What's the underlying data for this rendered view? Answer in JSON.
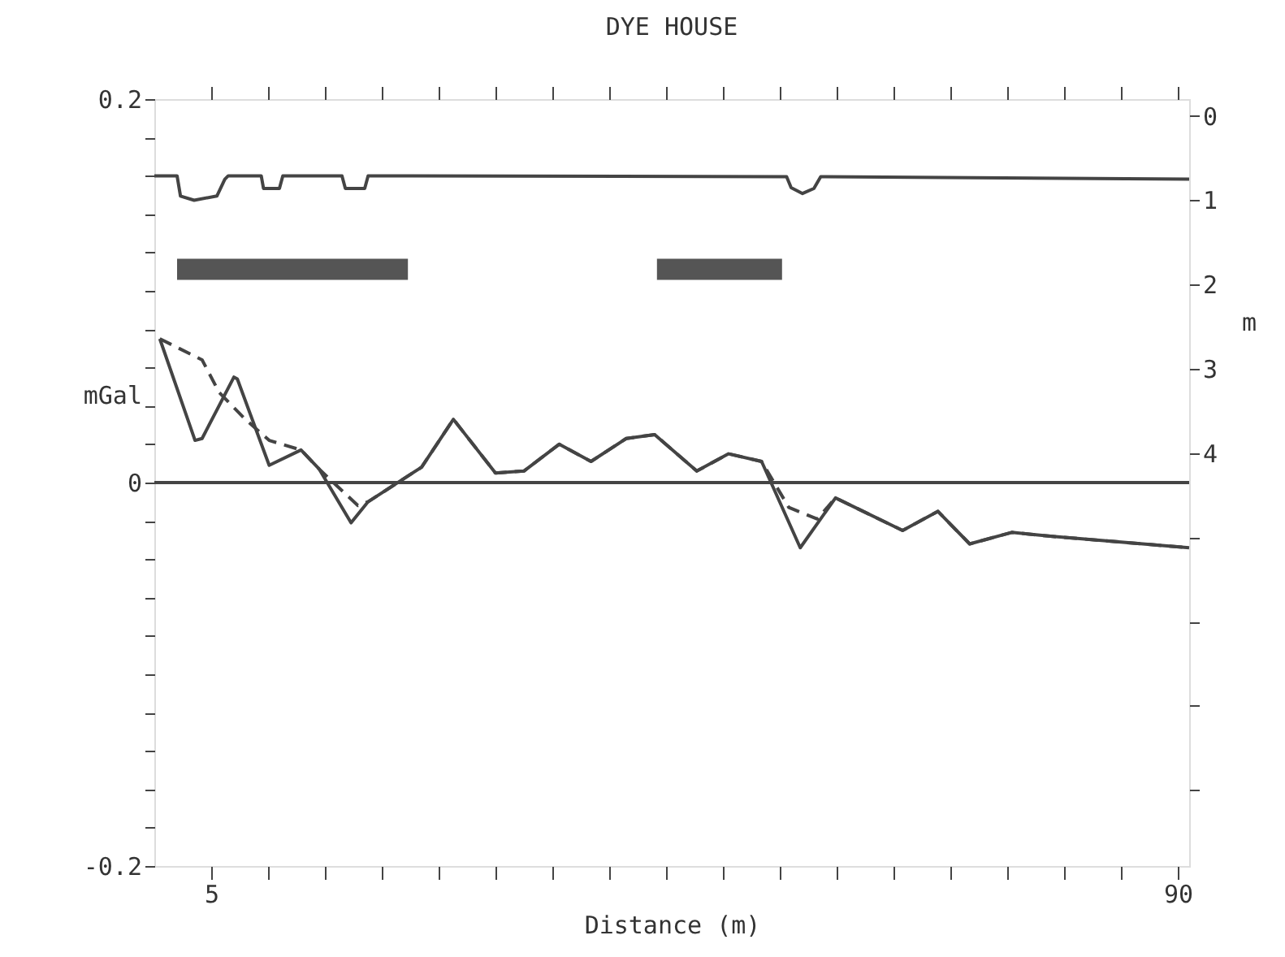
{
  "chart_data": {
    "type": "line",
    "title": "DYE HOUSE",
    "xlabel": "Distance (m)",
    "ylabel": "mGal",
    "y2label": "m",
    "xlim": [
      0,
      91
    ],
    "ylim": [
      -0.2,
      0.2
    ],
    "y2lim": [
      8.9,
      -0.2
    ],
    "xticks": [
      5,
      {
        "value": 10,
        "label": null
      },
      {
        "value": 15,
        "label": null
      },
      {
        "value": 20,
        "label": null
      },
      {
        "value": 25,
        "label": null
      },
      {
        "value": 30,
        "label": null
      },
      {
        "value": 35,
        "label": null
      },
      {
        "value": 40,
        "label": null
      },
      {
        "value": 45,
        "label": null
      },
      {
        "value": 50,
        "label": null
      },
      {
        "value": 55,
        "label": null
      },
      {
        "value": 60,
        "label": null
      },
      {
        "value": 65,
        "label": null
      },
      {
        "value": 70,
        "label": null
      },
      {
        "value": 75,
        "label": null
      },
      {
        "value": 80,
        "label": null
      },
      {
        "value": 85,
        "label": null
      },
      90
    ],
    "yticks": [
      -0.2,
      {
        "value": -0.18,
        "label": null
      },
      {
        "value": -0.16,
        "label": null
      },
      {
        "value": -0.14,
        "label": null
      },
      {
        "value": -0.12,
        "label": null
      },
      {
        "value": -0.1,
        "label": null
      },
      {
        "value": -0.08,
        "label": null
      },
      {
        "value": -0.06,
        "label": null
      },
      {
        "value": -0.04,
        "label": null
      },
      {
        "value": -0.02,
        "label": null
      },
      0,
      {
        "value": 0.02,
        "label": null
      },
      {
        "value": 0.04,
        "label": null
      },
      {
        "value": 0.06,
        "label": null
      },
      {
        "value": 0.08,
        "label": null
      },
      {
        "value": 0.1,
        "label": null
      },
      {
        "value": 0.12,
        "label": null
      },
      {
        "value": 0.14,
        "label": null
      },
      {
        "value": 0.16,
        "label": null
      },
      {
        "value": 0.18,
        "label": null
      },
      0.2
    ],
    "y2ticks": [
      0,
      1,
      2,
      3,
      4,
      {
        "value": 5,
        "label": null
      },
      {
        "value": 6,
        "label": null
      },
      {
        "value": 7,
        "label": null
      },
      {
        "value": 8,
        "label": null
      }
    ],
    "grid": false,
    "marker": "none",
    "ref_lines": [
      {
        "axis": "y",
        "value": 0,
        "color": "#444444"
      }
    ],
    "series": [
      {
        "type": "line",
        "axis": "y",
        "color": "#444444",
        "line_style": "solid",
        "x": [
          0.48,
          3.58,
          4.2,
          7.0,
          7.3,
          10.1,
          12.9,
          14.5,
          17.3,
          18.8,
          23.5,
          26.3,
          30.0,
          32.5,
          35.6,
          38.4,
          41.5,
          44.0,
          47.7,
          50.5,
          53.4,
          56.8,
          59.9,
          65.8,
          68.9,
          71.7,
          75.4,
          78.8,
          91
        ],
        "values": [
          0.075,
          0.022,
          0.023,
          0.055,
          0.054,
          0.009,
          0.017,
          0.007,
          -0.021,
          -0.01,
          0.008,
          0.033,
          0.005,
          0.006,
          0.02,
          0.011,
          0.023,
          0.025,
          0.006,
          0.015,
          0.011,
          -0.034,
          -0.008,
          -0.025,
          -0.015,
          -0.032,
          -0.026,
          -0.028,
          -0.034
        ]
      },
      {
        "type": "line",
        "axis": "y",
        "color": "#444444",
        "line_style": "dashed",
        "x": [
          0.48,
          4.2,
          5.7,
          8.0,
          10.1,
          12.9,
          14.5,
          17.9,
          18.8,
          23.5,
          26.3,
          30.0,
          32.5,
          35.6,
          38.4,
          41.5,
          44.0,
          47.7,
          50.5,
          53.4,
          55.8,
          58.3,
          59.9,
          65.8,
          68.9,
          71.7,
          75.4,
          78.8,
          91
        ],
        "values": [
          0.075,
          0.064,
          0.047,
          0.033,
          0.022,
          0.017,
          0.007,
          -0.012,
          -0.01,
          0.008,
          0.033,
          0.005,
          0.006,
          0.02,
          0.011,
          0.023,
          0.025,
          0.006,
          0.015,
          0.011,
          -0.013,
          -0.019,
          -0.008,
          -0.025,
          -0.015,
          -0.032,
          -0.026,
          -0.028,
          -0.034
        ]
      },
      {
        "type": "line",
        "axis": "y2",
        "color": "#444444",
        "line_style": "solid",
        "x": [
          0,
          2.0,
          2.3,
          3.5,
          5.5,
          6.2,
          6.5,
          9.4,
          9.6,
          11.0,
          11.3,
          16.5,
          16.8,
          18.5,
          18.8,
          55.6,
          56.0,
          57.0,
          58.0,
          58.6,
          91
        ],
        "values": [
          0.71,
          0.71,
          0.95,
          1.0,
          0.95,
          0.75,
          0.71,
          0.71,
          0.86,
          0.86,
          0.71,
          0.71,
          0.86,
          0.86,
          0.71,
          0.72,
          0.85,
          0.92,
          0.86,
          0.72,
          0.75
        ]
      },
      {
        "type": "line",
        "axis": "y2",
        "color": "#555555",
        "line_style": "solid",
        "x": [
          2.0,
          22.3
        ],
        "values": [
          1.82,
          1.82
        ]
      },
      {
        "type": "line",
        "axis": "y2",
        "color": "#555555",
        "line_style": "solid",
        "x": [
          44.2,
          55.2
        ],
        "values": [
          1.82,
          1.82
        ]
      }
    ]
  }
}
